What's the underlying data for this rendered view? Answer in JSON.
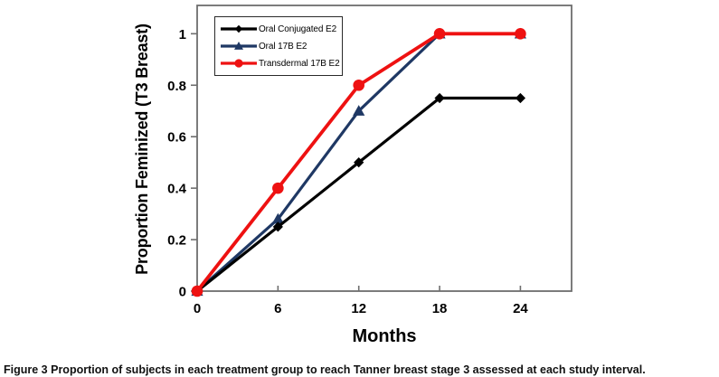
{
  "figure": {
    "caption_label": "Figure 3",
    "caption_text": "Proportion of subjects in each treatment group to reach Tanner breast stage 3 assessed at each study interval."
  },
  "chart_data": {
    "type": "line",
    "xlabel": "Months",
    "ylabel": "Proportion Feminized (T3 Breast)",
    "x": [
      0,
      6,
      12,
      18,
      24
    ],
    "xticks": [
      "0",
      "6",
      "12",
      "18",
      "24"
    ],
    "ytick_values": [
      0,
      0.2,
      0.4,
      0.6,
      0.8,
      1
    ],
    "yticks": [
      "0",
      "0.2",
      "0.4",
      "0.6",
      "0.8",
      "1"
    ],
    "xlim": [
      0,
      27.8
    ],
    "ylim": [
      0,
      1.11
    ],
    "grid": false,
    "legend_position": "top-left-inside",
    "series": [
      {
        "name": "Oral Conjugated E2",
        "color": "#000000",
        "marker": "diamond",
        "line_width": 3.2,
        "z": 2,
        "values": [
          0,
          0.25,
          0.5,
          0.75,
          0.75
        ]
      },
      {
        "name": "Oral 17B E2",
        "color": "#1F3864",
        "marker": "triangle",
        "line_width": 3.2,
        "z": 1,
        "values": [
          0,
          0.28,
          0.7,
          1,
          1
        ]
      },
      {
        "name": "Transdermal 17B E2",
        "color": "#EE1111",
        "marker": "circle",
        "line_width": 3.8,
        "z": 3,
        "values": [
          0,
          0.4,
          0.8,
          1,
          1
        ]
      }
    ],
    "colors": {
      "axis_box": "#6e6e6e",
      "tick": "#6e6e6e",
      "text": "#000000",
      "background": "#ffffff"
    }
  }
}
